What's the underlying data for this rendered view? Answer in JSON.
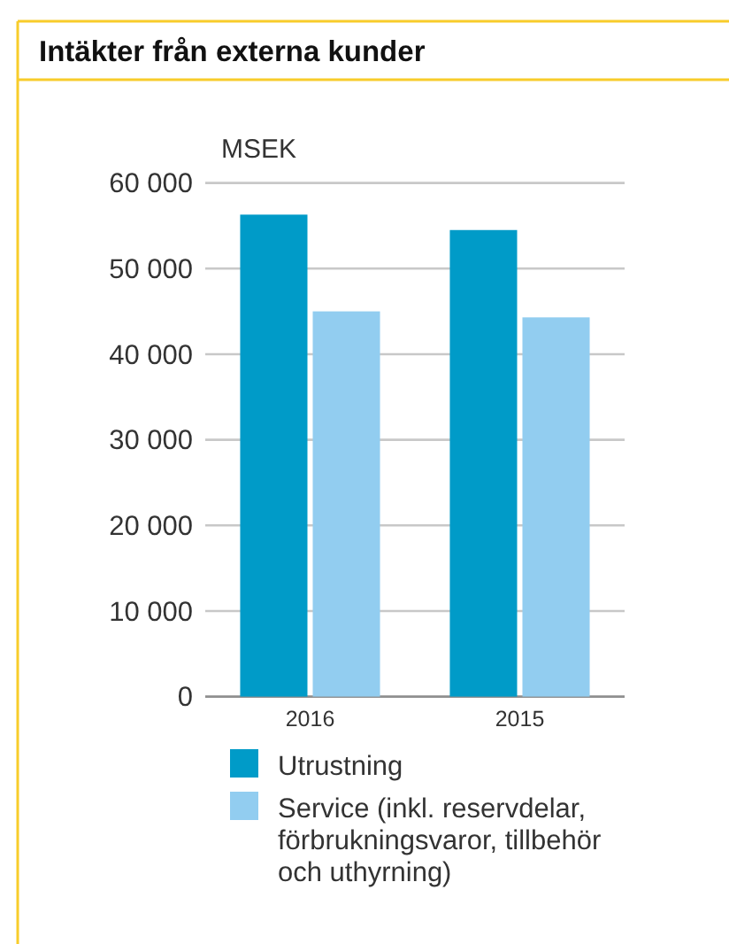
{
  "chart_data": {
    "type": "bar",
    "title": "Intäkter från externa kunder",
    "ylabel": "MSEK",
    "categories": [
      "2016",
      "2015"
    ],
    "series": [
      {
        "name": "Utrustning",
        "color": "#009bc8",
        "values": [
          56300,
          54500
        ]
      },
      {
        "name": "Service (inkl. reservdelar, förbrukningsvaror, tillbehör och uthyrning)",
        "color": "#92cdf0",
        "values": [
          45000,
          44300
        ]
      }
    ],
    "ylim": [
      0,
      60000
    ],
    "yticks": [
      0,
      {
        "value": 10000,
        "label": "10 000"
      },
      {
        "value": 20000,
        "label": "20 000"
      },
      {
        "value": 30000,
        "label": "30 000"
      },
      {
        "value": 40000,
        "label": "40 000"
      },
      {
        "value": 50000,
        "label": "50 000"
      },
      {
        "value": 60000,
        "label": "60 000"
      }
    ],
    "grid": "y",
    "legend": "bottom"
  }
}
